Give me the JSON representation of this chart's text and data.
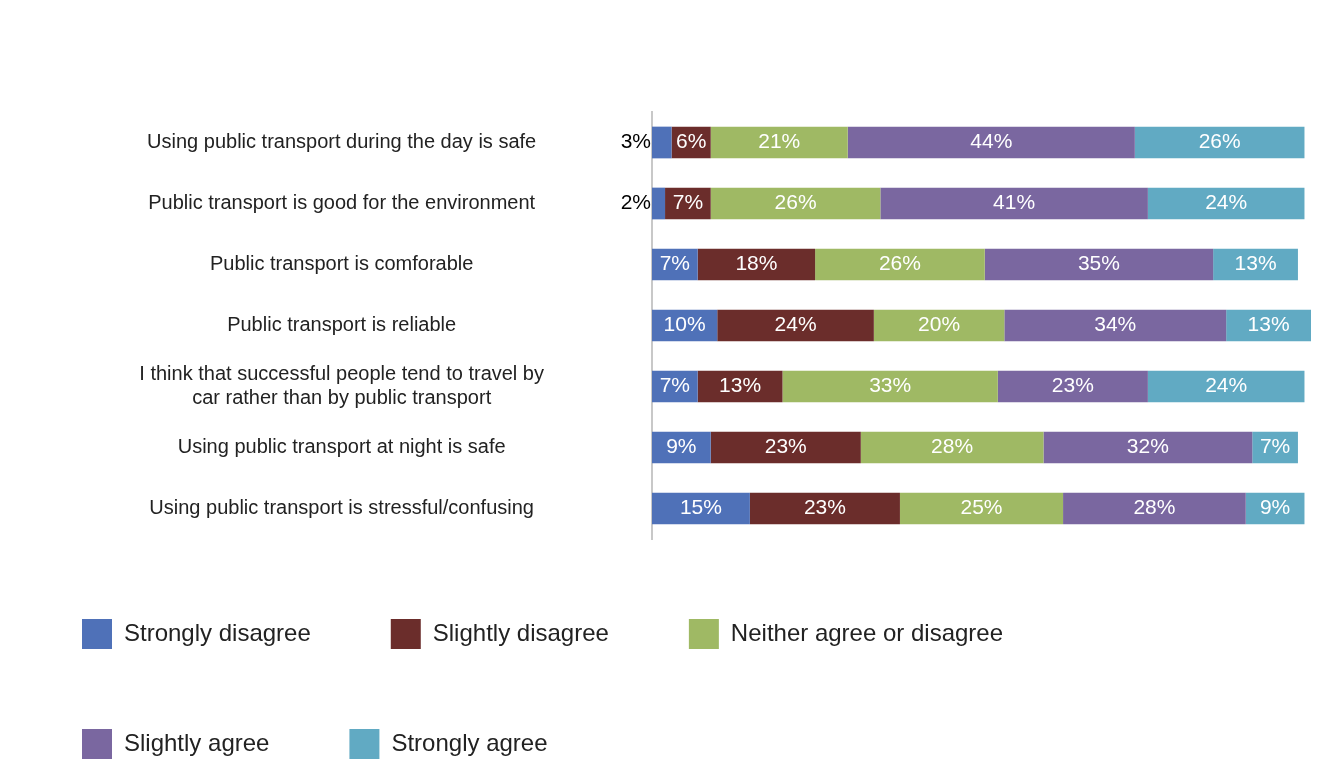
{
  "chart_data": {
    "type": "bar",
    "orientation": "horizontal",
    "stacked": true,
    "legend": "bottom",
    "grid": false,
    "tick_labels": "y",
    "xlim": [
      0,
      101
    ],
    "categories": [
      "Using public transport during the day is safe",
      "Public transport is good for the environment",
      "Public transport is comforable",
      "Public transport is reliable",
      "I think that successful people tend to travel by car rather than by public transport",
      "Using public transport at night is safe",
      "Using public transport is stressful/confusing"
    ],
    "series": [
      {
        "name": "Strongly disagree",
        "color": "#4f71b8",
        "values": [
          3,
          2,
          7,
          10,
          7,
          9,
          15
        ],
        "value_labels": [
          "3%",
          "2%",
          "7%",
          "10%",
          "7%",
          "9%",
          "15%"
        ]
      },
      {
        "name": "Slightly disagree",
        "color": "#6b2d2b",
        "values": [
          6,
          7,
          18,
          24,
          13,
          23,
          23
        ],
        "value_labels": [
          "6%",
          "7%",
          "18%",
          "24%",
          "13%",
          "23%",
          "23%"
        ]
      },
      {
        "name": "Neither agree or disagree",
        "color": "#9fb964",
        "values": [
          21,
          26,
          26,
          20,
          33,
          28,
          25
        ],
        "value_labels": [
          "21%",
          "26%",
          "26%",
          "20%",
          "33%",
          "28%",
          "25%"
        ]
      },
      {
        "name": "Slightly agree",
        "color": "#7a67a0",
        "values": [
          44,
          41,
          35,
          34,
          23,
          32,
          28
        ],
        "value_labels": [
          "44%",
          "41%",
          "35%",
          "34%",
          "23%",
          "32%",
          "28%"
        ]
      },
      {
        "name": "Strongly agree",
        "color": "#61aac3",
        "values": [
          26,
          24,
          13,
          13,
          24,
          7,
          9
        ],
        "value_labels": [
          "26%",
          "24%",
          "13%",
          "13%",
          "24%",
          "7%",
          "9%"
        ]
      }
    ]
  }
}
